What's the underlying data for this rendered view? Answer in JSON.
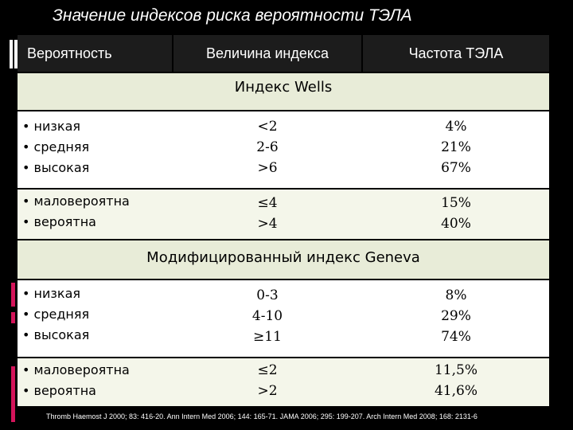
{
  "title": "Значение индексов риска вероятности ТЭЛА",
  "columns": [
    "Вероятность",
    "Величина индекса",
    "Частота ТЭЛА"
  ],
  "sections": [
    {
      "name": "Индекс Wells",
      "groups": [
        {
          "levels": [
            "низкая",
            "средняя",
            "высокая"
          ],
          "index": [
            "<2",
            "2-6",
            ">6"
          ],
          "freq": [
            "4%",
            "21%",
            "67%"
          ]
        },
        {
          "levels": [
            "маловероятна",
            "вероятна"
          ],
          "index": [
            "≤4",
            ">4"
          ],
          "freq": [
            "15%",
            "40%"
          ]
        }
      ]
    },
    {
      "name": "Модифицированный индекс Geneva",
      "groups": [
        {
          "levels": [
            "низкая",
            "средняя",
            "высокая"
          ],
          "index": [
            "0-3",
            "4-10",
            "≥11"
          ],
          "freq": [
            "8%",
            "29%",
            "74%"
          ]
        },
        {
          "levels": [
            "маловероятна",
            "вероятна"
          ],
          "index": [
            "≤2",
            ">2"
          ],
          "freq": [
            "11,5%",
            "41,6%"
          ]
        }
      ]
    }
  ],
  "footer": "Thromb Haemost J 2000; 83: 416-20. Ann Intern Med 2006; 144: 165-71. JAMA 2006; 295: 199-207. Arch Intern Med 2008; 168: 2131-6",
  "colors": {
    "background": "#000000",
    "header": "#1c1c1c",
    "section": "#e8ecd8",
    "accent": "#d4145a"
  }
}
